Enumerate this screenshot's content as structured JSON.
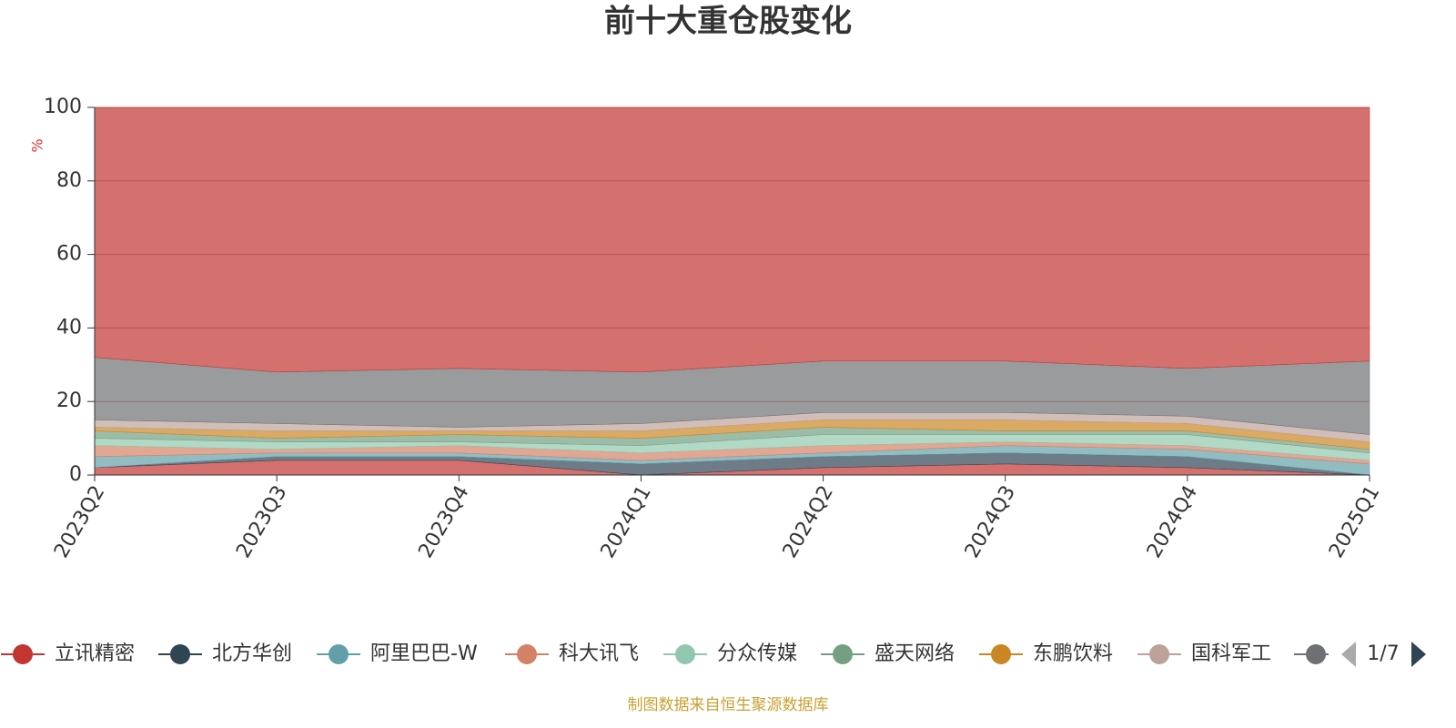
{
  "chart_data": {
    "type": "stacked_area",
    "title": "前十大重仓股变化",
    "y_label": "%",
    "categories": [
      "2023Q2",
      "2023Q3",
      "2023Q4",
      "2024Q1",
      "2024Q2",
      "2024Q3",
      "2024Q4",
      "2025Q1"
    ],
    "series": [
      {
        "name": "立讯精密",
        "color": "#c23531",
        "values": [
          2,
          4,
          4,
          0,
          2,
          3,
          2,
          0
        ]
      },
      {
        "name": "北方华创",
        "color": "#2f4554",
        "values": [
          0,
          1,
          1,
          3,
          3,
          3,
          3,
          0
        ]
      },
      {
        "name": "阿里巴巴-W",
        "color": "#61a0a8",
        "values": [
          3,
          1,
          1,
          1,
          1,
          2,
          2,
          3
        ]
      },
      {
        "name": "科大讯飞",
        "color": "#d48265",
        "values": [
          3,
          1,
          2,
          2,
          2,
          1,
          1,
          1
        ]
      },
      {
        "name": "分众传媒",
        "color": "#91c7ae",
        "values": [
          2,
          2,
          1,
          2,
          3,
          2,
          3,
          2
        ]
      },
      {
        "name": "盛天网络",
        "color": "#749f83",
        "values": [
          2,
          1,
          2,
          2,
          2,
          1,
          1,
          1
        ]
      },
      {
        "name": "东鹏饮料",
        "color": "#ca8622",
        "values": [
          1,
          2,
          1,
          2,
          2,
          3,
          2,
          2
        ]
      },
      {
        "name": "国科军工",
        "color": "#bda29a",
        "values": [
          2,
          2,
          1,
          2,
          2,
          2,
          2,
          2
        ]
      },
      {
        "name": null,
        "color": "#6e7074",
        "values": [
          17,
          14,
          16,
          14,
          14,
          14,
          13,
          20
        ]
      },
      {
        "name": null,
        "color": "#c23531",
        "values": [
          68,
          72,
          71,
          72,
          69,
          69,
          71,
          69
        ]
      }
    ],
    "ylim": [
      0,
      100
    ],
    "yticks": [
      0,
      20,
      40,
      60,
      80,
      100
    ],
    "grid": true,
    "legend_position": "bottom",
    "legend_page": "1/7",
    "source": "制图数据来自恒生聚源数据库"
  }
}
